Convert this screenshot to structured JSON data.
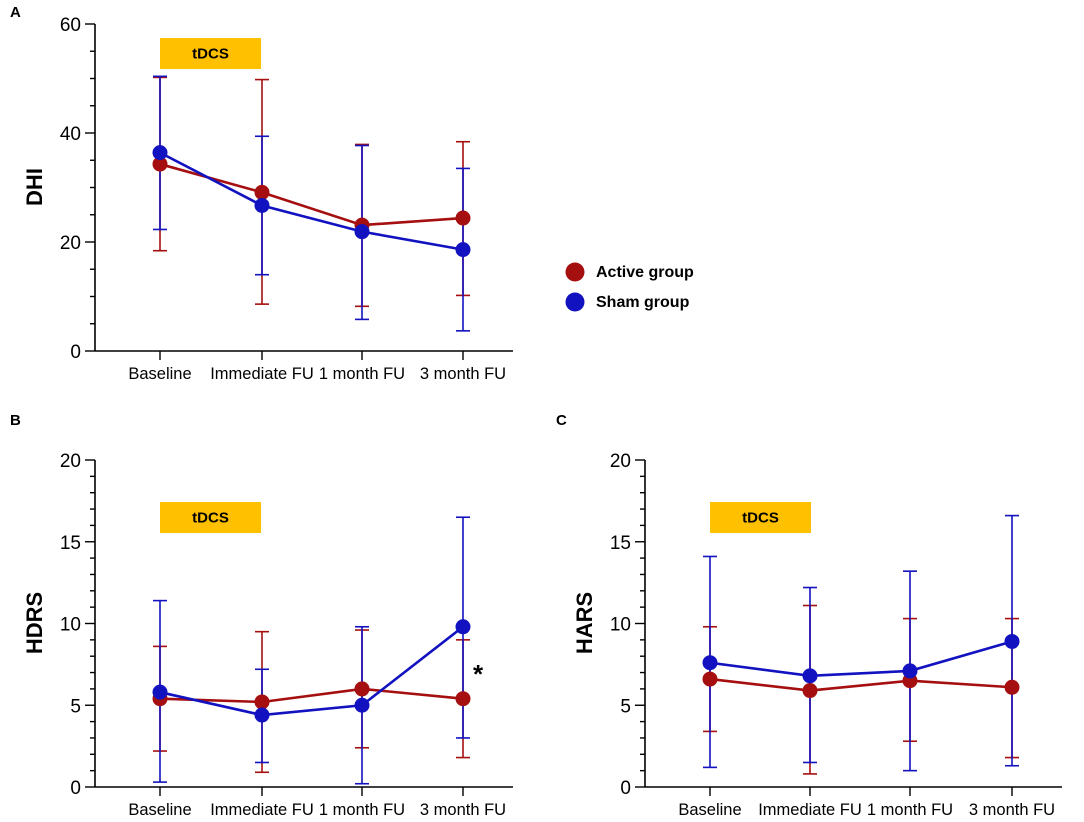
{
  "chart_data": [
    {
      "panel": "A",
      "type": "line",
      "ylabel": "DHI",
      "categories": [
        "Baseline",
        "Immediate FU",
        "1 month FU",
        "3 month FU"
      ],
      "ylim": [
        0,
        60
      ],
      "yticks": [
        0,
        20,
        40,
        60
      ],
      "minor_step": 5,
      "annotation": "tDCS",
      "significance": [],
      "series": [
        {
          "name": "Active group",
          "color": "#a50f0f",
          "values": [
            34.3,
            29.1,
            23.1,
            24.4
          ],
          "err_low": [
            18.4,
            8.6,
            8.2,
            10.2
          ],
          "err_high": [
            50.2,
            49.8,
            37.9,
            38.4
          ]
        },
        {
          "name": "Sham group",
          "color": "#1212c0",
          "values": [
            36.4,
            26.7,
            21.9,
            18.6
          ],
          "err_low": [
            22.3,
            14.0,
            5.8,
            3.7
          ],
          "err_high": [
            50.4,
            39.4,
            37.7,
            33.5
          ]
        }
      ]
    },
    {
      "panel": "B",
      "type": "line",
      "ylabel": "HDRS",
      "categories": [
        "Baseline",
        "Immediate FU",
        "1 month FU",
        "3 month FU"
      ],
      "ylim": [
        0,
        20
      ],
      "yticks": [
        0,
        5,
        10,
        15,
        20
      ],
      "minor_step": 1,
      "annotation": "tDCS",
      "significance": [
        {
          "category_index": 3,
          "symbol": "*"
        }
      ],
      "series": [
        {
          "name": "Active group",
          "color": "#a50f0f",
          "values": [
            5.4,
            5.2,
            6.0,
            5.4
          ],
          "err_low": [
            2.2,
            0.9,
            2.4,
            1.8
          ],
          "err_high": [
            8.6,
            9.5,
            9.6,
            9.0
          ]
        },
        {
          "name": "Sham group",
          "color": "#1212c0",
          "values": [
            5.8,
            4.4,
            5.0,
            9.8
          ],
          "err_low": [
            0.3,
            1.5,
            0.2,
            3.0
          ],
          "err_high": [
            11.4,
            7.2,
            9.8,
            16.5
          ]
        }
      ]
    },
    {
      "panel": "C",
      "type": "line",
      "ylabel": "HARS",
      "categories": [
        "Baseline",
        "Immediate FU",
        "1 month FU",
        "3 month FU"
      ],
      "ylim": [
        0,
        20
      ],
      "yticks": [
        0,
        5,
        10,
        15,
        20
      ],
      "minor_step": 1,
      "annotation": "tDCS",
      "significance": [],
      "series": [
        {
          "name": "Active group",
          "color": "#a50f0f",
          "values": [
            6.6,
            5.9,
            6.5,
            6.1
          ],
          "err_low": [
            3.4,
            0.8,
            2.8,
            1.8
          ],
          "err_high": [
            9.8,
            11.1,
            10.3,
            10.3
          ]
        },
        {
          "name": "Sham group",
          "color": "#1212c0",
          "values": [
            7.6,
            6.8,
            7.1,
            8.9
          ],
          "err_low": [
            1.2,
            1.5,
            1.0,
            1.3
          ],
          "err_high": [
            14.1,
            12.2,
            13.2,
            16.6
          ]
        }
      ]
    }
  ],
  "legend": {
    "items": [
      {
        "label": "Active group",
        "color": "#a50f0f"
      },
      {
        "label": "Sham group",
        "color": "#1212c0"
      }
    ]
  },
  "annotation_color": "#ffc000"
}
